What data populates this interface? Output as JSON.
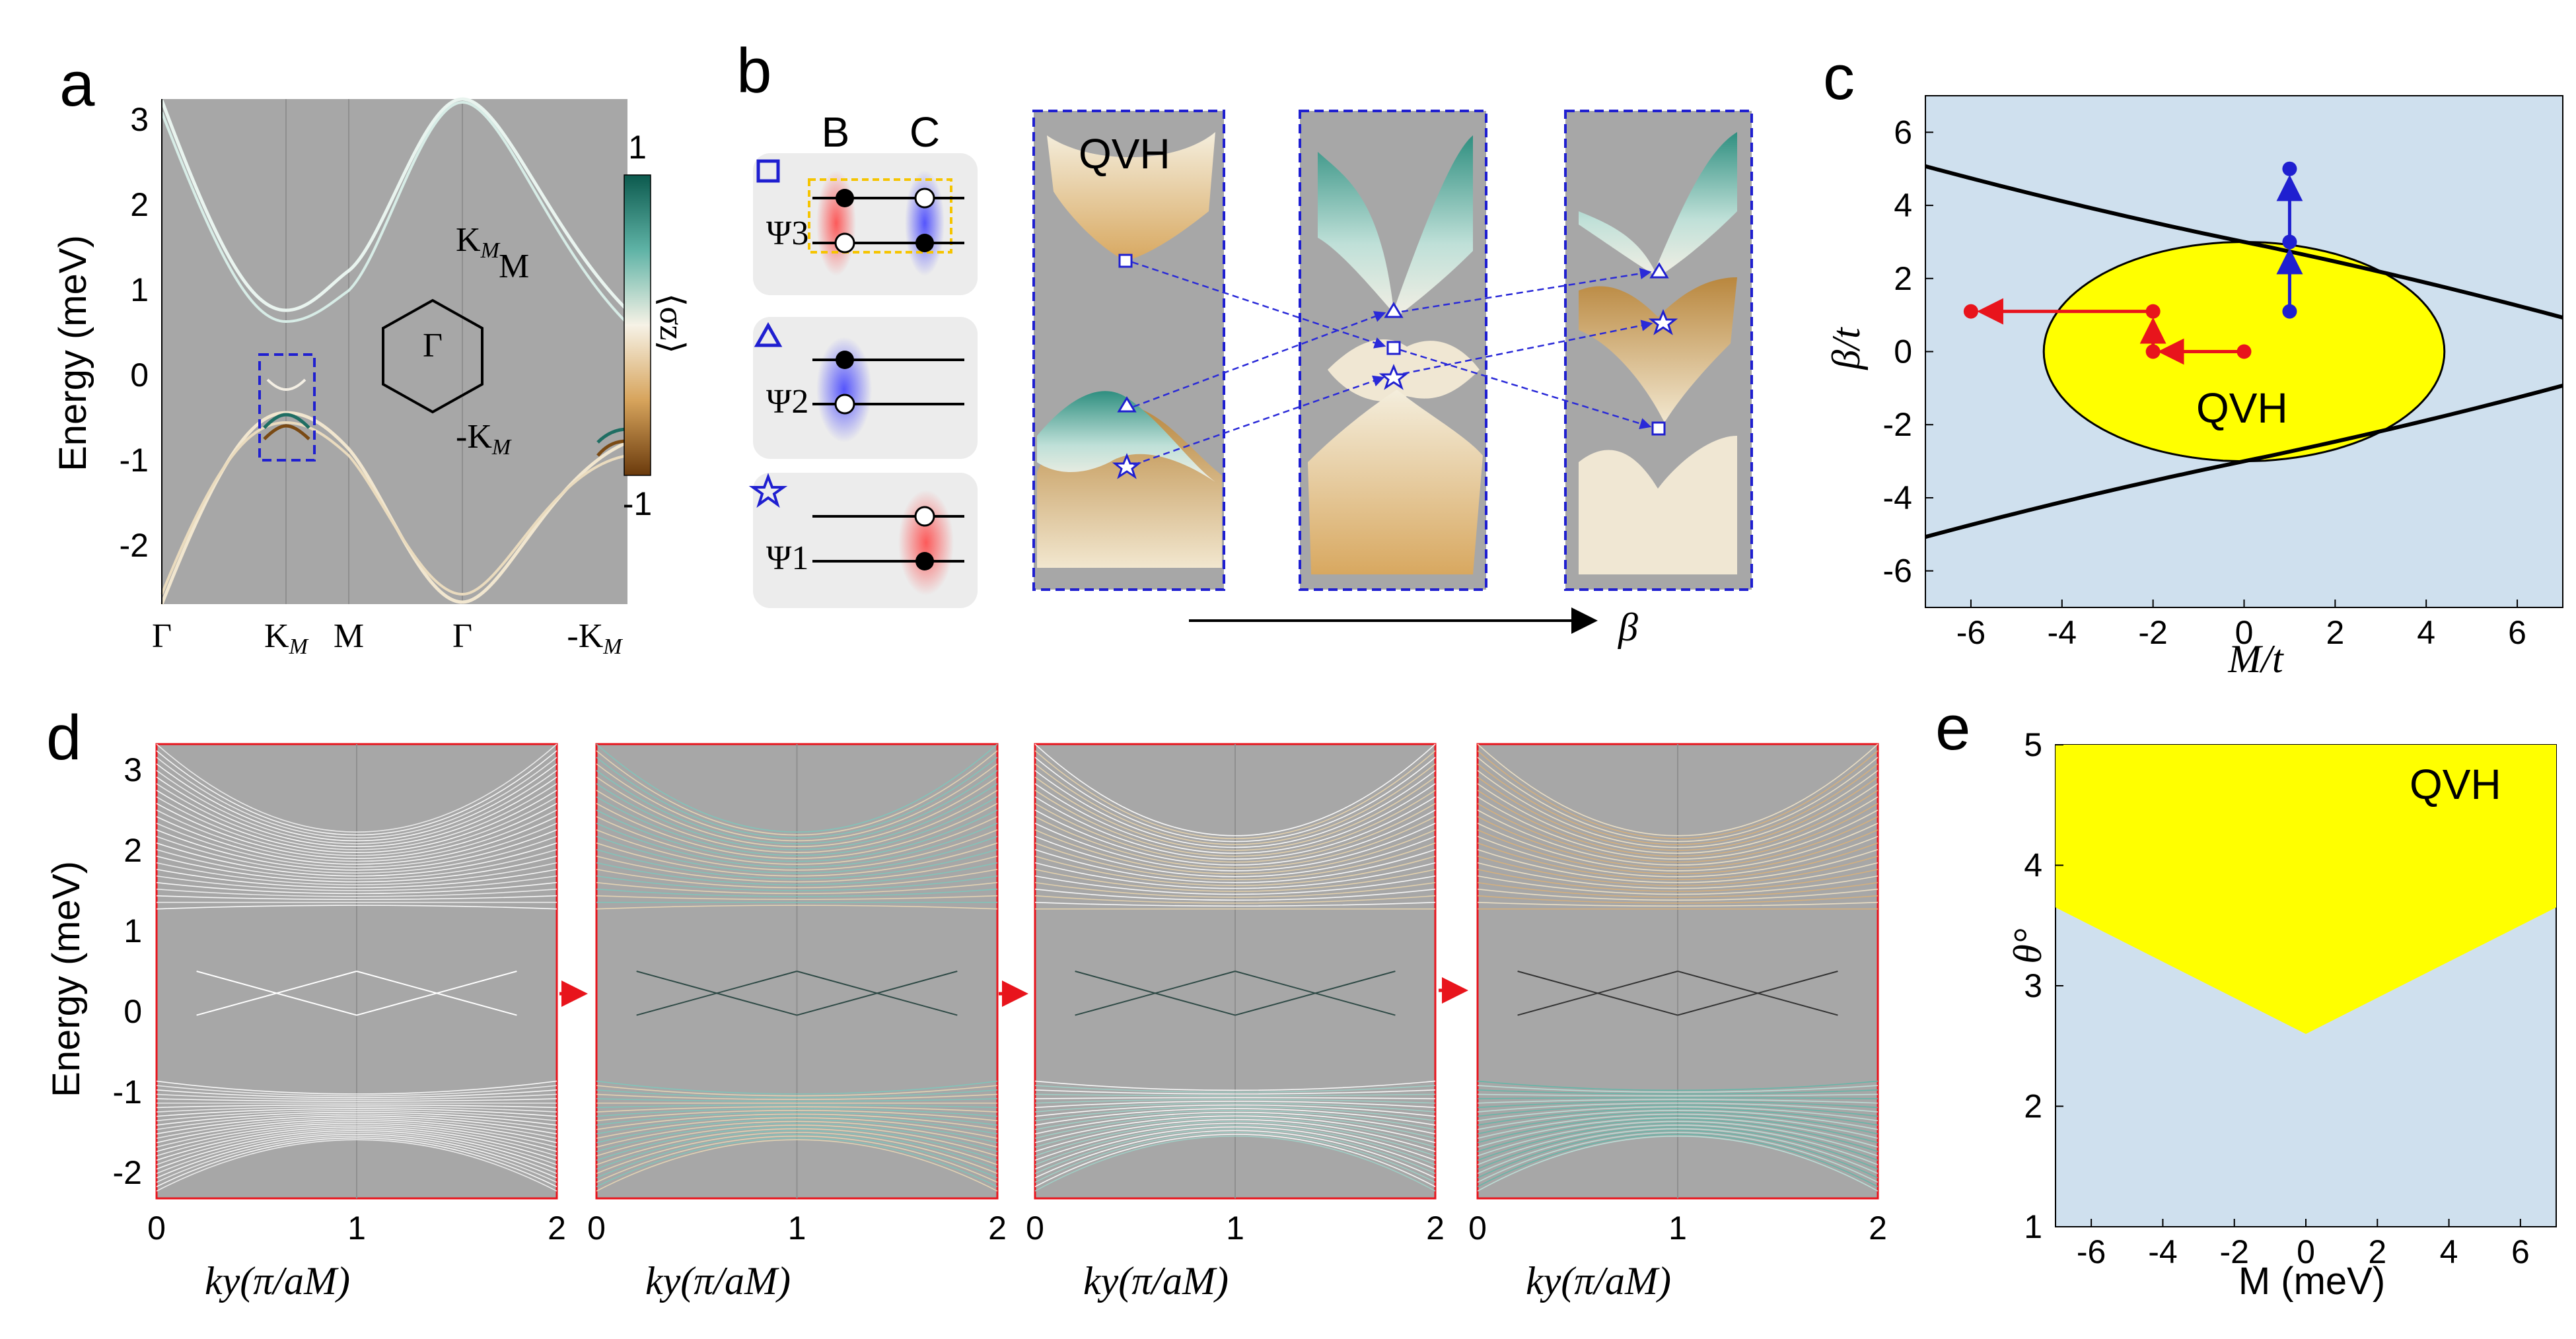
{
  "panels": {
    "a": "a",
    "b": "b",
    "c": "c",
    "d": "d",
    "e": "e"
  },
  "panel_a": {
    "ylabel": "Energy (meV)",
    "yticks": [
      "3",
      "2",
      "1",
      "0",
      "-1",
      "-2"
    ],
    "xticks": [
      "Γ",
      "K",
      "M",
      "Γ",
      "-K"
    ],
    "xsub": "M",
    "colorbar_max": "1",
    "colorbar_min": "-1",
    "colorbar_label": "⟨σz⟩",
    "bz_labels": {
      "k_top": "K",
      "m": "M",
      "gamma": "Γ",
      "k_bottom": "-K",
      "sub": "M"
    }
  },
  "panel_b": {
    "col_b": "B",
    "col_c": "C",
    "psi": [
      "Ψ3",
      "Ψ2",
      "Ψ1"
    ],
    "qvh": "QVH",
    "beta": "β"
  },
  "panel_c": {
    "xlabel": "M/t",
    "ylabel": "β/t",
    "xticks": [
      "-6",
      "-4",
      "-2",
      "0",
      "2",
      "4",
      "6"
    ],
    "yticks": [
      "6",
      "4",
      "2",
      "0",
      "-2",
      "-4",
      "-6"
    ],
    "region_label": "QVH",
    "colors": {
      "normal": "#cfe0ee",
      "qvh": "#ffff00",
      "red": "#e8141c",
      "blue": "#1f1fd0"
    }
  },
  "panel_d": {
    "ylabel": "Energy (meV)",
    "yticks": [
      "3",
      "2",
      "1",
      "0",
      "-1",
      "-2"
    ],
    "xticks": [
      "0",
      "1",
      "2"
    ],
    "xlabel": "ky(π/aM)"
  },
  "panel_e": {
    "xlabel": "M (meV)",
    "ylabel": "θ°",
    "xticks": [
      "-6",
      "-4",
      "-2",
      "0",
      "2",
      "4",
      "6"
    ],
    "yticks": [
      "5",
      "4",
      "3",
      "2",
      "1"
    ],
    "region_label": "QVH"
  }
}
